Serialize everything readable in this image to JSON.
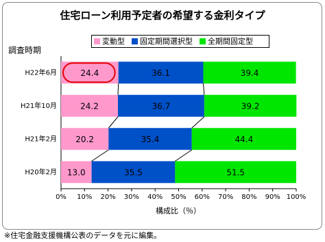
{
  "chart_data": {
    "type": "stacked-bar-horizontal",
    "title": "住宅ローン利用予定者の希望する金利タイプ",
    "y_label": "調査時期",
    "x_label": "構成比（％）",
    "note": "※住宅金融支援機構公表のデータを元に編集。",
    "categories": [
      "H22年6月",
      "H21年10月",
      "H21年2月",
      "H20年2月"
    ],
    "series": [
      {
        "name": "変動型",
        "color": "#ff99cc",
        "values": [
          24.4,
          24.2,
          20.2,
          13.0
        ],
        "value_labels": [
          "24.4",
          "24.2",
          "20.2",
          "13.0"
        ]
      },
      {
        "name": "固定期間選択型",
        "color": "#0050c8",
        "values": [
          36.1,
          36.7,
          35.4,
          35.5
        ]
      },
      {
        "name": "全期間固定型",
        "color": "#00e600",
        "values": [
          39.4,
          39.2,
          44.4,
          51.5
        ]
      }
    ],
    "xlim": [
      0,
      100
    ],
    "xticks": [
      {
        "value": 0,
        "label": "0%"
      },
      {
        "value": 10,
        "label": "10%"
      },
      {
        "value": 20,
        "label": "20%"
      },
      {
        "value": 30,
        "label": "30%"
      },
      {
        "value": 40,
        "label": "40%"
      },
      {
        "value": 50,
        "label": "50%"
      },
      {
        "value": 60,
        "label": "60%"
      },
      {
        "value": 70,
        "label": "70%"
      },
      {
        "value": 80,
        "label": "80%"
      },
      {
        "value": 90,
        "label": "90%"
      },
      {
        "value": 100,
        "label": "100%"
      }
    ]
  }
}
